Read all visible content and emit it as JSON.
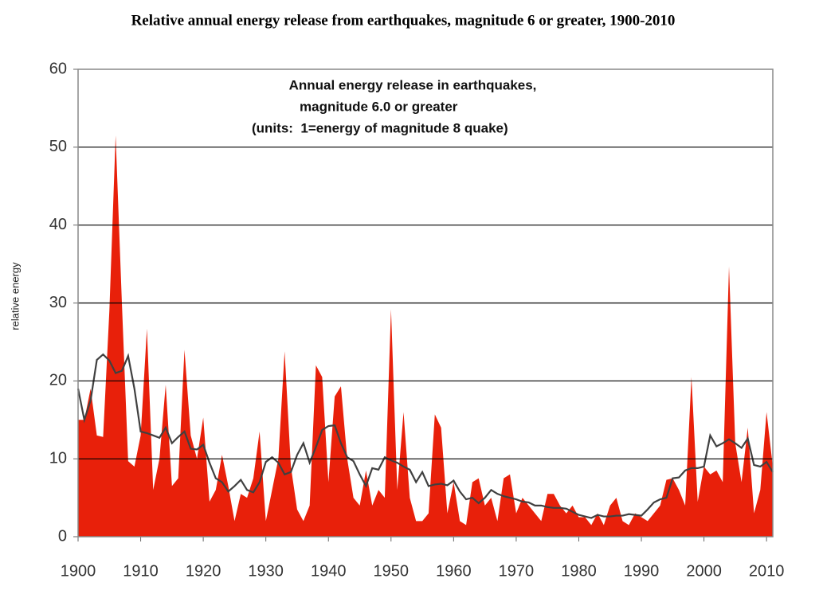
{
  "chart_data": {
    "type": "area",
    "title": "Relative annual energy release from earthquakes, magnitude 6 or greater, 1900-2010",
    "annotations": [
      "Annual energy release in earthquakes,",
      "magnitude 6.0 or greater",
      "(units:  1=energy of magnitude 8 quake)"
    ],
    "y_label": "relative energy",
    "x": [
      1900,
      1901,
      1902,
      1903,
      1904,
      1905,
      1906,
      1907,
      1908,
      1909,
      1910,
      1911,
      1912,
      1913,
      1914,
      1915,
      1916,
      1917,
      1918,
      1919,
      1920,
      1921,
      1922,
      1923,
      1924,
      1925,
      1926,
      1927,
      1928,
      1929,
      1930,
      1931,
      1932,
      1933,
      1934,
      1935,
      1936,
      1937,
      1938,
      1939,
      1940,
      1941,
      1942,
      1943,
      1944,
      1945,
      1946,
      1947,
      1948,
      1949,
      1950,
      1951,
      1952,
      1953,
      1954,
      1955,
      1956,
      1957,
      1958,
      1959,
      1960,
      1961,
      1962,
      1963,
      1964,
      1965,
      1966,
      1967,
      1968,
      1969,
      1970,
      1971,
      1972,
      1973,
      1974,
      1975,
      1976,
      1977,
      1978,
      1979,
      1980,
      1981,
      1982,
      1983,
      1984,
      1985,
      1986,
      1987,
      1988,
      1989,
      1990,
      1991,
      1992,
      1993,
      1994,
      1995,
      1996,
      1997,
      1998,
      1999,
      2000,
      2001,
      2002,
      2003,
      2004,
      2005,
      2006,
      2007,
      2008,
      2009,
      2010,
      2011
    ],
    "series": [
      {
        "type": "area",
        "color": "#e8200a",
        "values": [
          15,
          15,
          19,
          13,
          12.8,
          29,
          51.5,
          30,
          9.7,
          9,
          13,
          26.7,
          6,
          10,
          19.5,
          6.5,
          7.5,
          24,
          13,
          10,
          15.3,
          4.5,
          6,
          10.5,
          6.5,
          2,
          5.5,
          5,
          7.5,
          13.5,
          2,
          6,
          10,
          23.8,
          9,
          3.5,
          2,
          4,
          22,
          20.5,
          7,
          18,
          19.3,
          10,
          5,
          4,
          8.5,
          4,
          6,
          5,
          29.2,
          6,
          16,
          5,
          2,
          2,
          3,
          15.7,
          14,
          3,
          7,
          2,
          1.5,
          7,
          7.5,
          4,
          5,
          2,
          7.5,
          8,
          3,
          5,
          4,
          3,
          2,
          5.5,
          5.5,
          4,
          3,
          4,
          2.5,
          2.5,
          1.5,
          3,
          1.5,
          4,
          5,
          2,
          1.5,
          3,
          2.5,
          2,
          3,
          4,
          7.3,
          7.5,
          6,
          4,
          20.5,
          4.5,
          9,
          8,
          8.5,
          7,
          34.7,
          12,
          7,
          14,
          3,
          6,
          16,
          9
        ]
      },
      {
        "type": "line",
        "color": "#404040",
        "values": [
          19,
          15,
          17.5,
          22.7,
          23.4,
          22.6,
          21,
          21.3,
          23.2,
          19,
          13.5,
          13.3,
          13,
          12.7,
          14,
          12,
          12.8,
          13.5,
          11.3,
          11.2,
          11.8,
          9.5,
          7.5,
          7,
          5.8,
          6.5,
          7.3,
          6,
          5.7,
          7,
          9.6,
          10.2,
          9.5,
          8,
          8.3,
          10.5,
          12,
          9.5,
          11.5,
          13.7,
          14.2,
          14.3,
          12,
          10.2,
          9.7,
          8,
          6.5,
          8.8,
          8.6,
          10.2,
          9.8,
          9.5,
          9,
          8.6,
          7,
          8.3,
          6.5,
          6.7,
          6.8,
          6.6,
          7.2,
          5.8,
          4.8,
          5,
          4.3,
          5,
          6,
          5.5,
          5.2,
          5,
          4.8,
          4.5,
          4.4,
          4,
          4,
          3.8,
          3.7,
          3.7,
          3.6,
          3.2,
          2.8,
          2.6,
          2.4,
          2.8,
          2.6,
          2.6,
          2.7,
          2.7,
          2.9,
          2.8,
          2.7,
          3.5,
          4.4,
          4.8,
          5,
          7.5,
          7.6,
          8.5,
          8.8,
          8.8,
          9,
          13,
          11.6,
          12,
          12.5,
          12,
          11.4,
          12.6,
          9.2,
          9,
          9.6,
          8.3
        ]
      }
    ],
    "xlim": [
      1900,
      2011
    ],
    "xticks": [
      1900,
      1910,
      1920,
      1930,
      1940,
      1950,
      1960,
      1970,
      1980,
      1990,
      2000,
      2010
    ],
    "ylim": [
      0,
      60
    ],
    "yticks": [
      0,
      10,
      20,
      30,
      40,
      50,
      60
    ],
    "grid": true
  }
}
